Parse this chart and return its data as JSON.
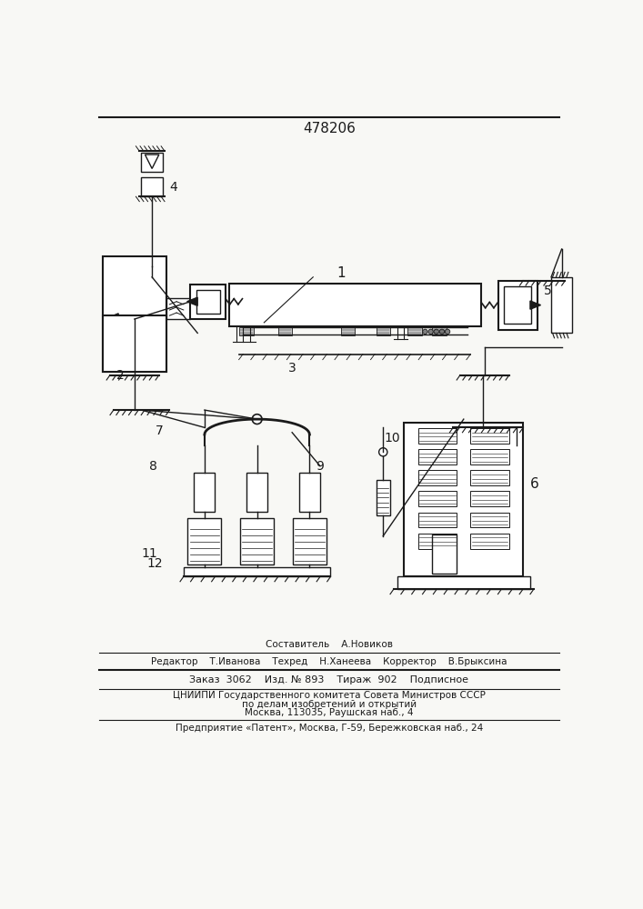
{
  "title": "478206",
  "bg_color": "#f8f8f5",
  "line_color": "#1a1a1a",
  "footer": {
    "line1": "Составитель    А.Новиков",
    "line2": "Редактор    Т.Иванова    Техред    Н.Ханеева    Корректор    В.Брыксина",
    "line3_left": "Заказ",
    "line3_order": "3062",
    "line3_mid1": "Изд. №",
    "line3_mid1v": "893",
    "line3_mid2": "Тираж",
    "line3_mid2v": "902",
    "line3_right": "Подписное",
    "line4": "ЦНИИПИ Государственного комитета Совета Министров СССР",
    "line5": "по делам изобретений и открытий",
    "line6": "Москва, 113035, Раушская наб., 4",
    "line7": "Предприятие «Патент», Москва, Г-59, Бережковская наб., 24"
  }
}
